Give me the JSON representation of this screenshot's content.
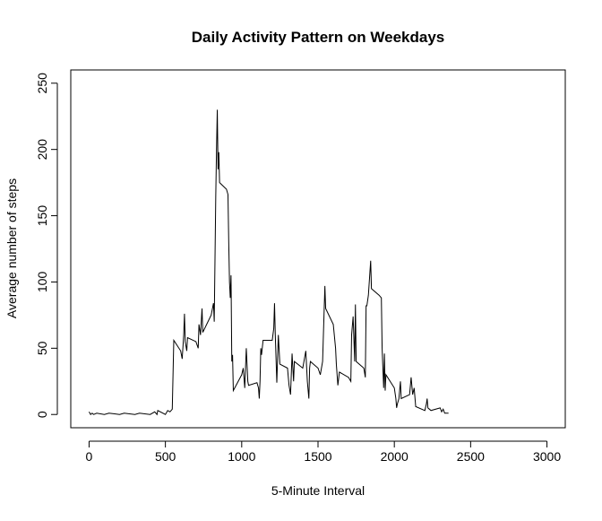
{
  "chart_data": {
    "type": "line",
    "title": "Daily Activity Pattern on Weekdays",
    "x_label": "5-Minute Interval",
    "y_label": "Average number of steps",
    "x": [
      0,
      10,
      20,
      30,
      50,
      100,
      130,
      200,
      230,
      300,
      330,
      400,
      430,
      445,
      450,
      500,
      515,
      530,
      545,
      550,
      555,
      600,
      610,
      620,
      625,
      630,
      640,
      645,
      700,
      715,
      720,
      730,
      740,
      745,
      800,
      815,
      820,
      830,
      835,
      840,
      845,
      850,
      855,
      900,
      910,
      915,
      920,
      925,
      930,
      935,
      940,
      945,
      1000,
      1010,
      1020,
      1030,
      1040,
      1045,
      1100,
      1110,
      1115,
      1120,
      1125,
      1130,
      1140,
      1200,
      1210,
      1215,
      1220,
      1230,
      1240,
      1250,
      1300,
      1310,
      1320,
      1330,
      1340,
      1345,
      1400,
      1420,
      1430,
      1440,
      1445,
      1450,
      1500,
      1515,
      1530,
      1545,
      1550,
      1600,
      1615,
      1620,
      1630,
      1640,
      1700,
      1715,
      1720,
      1730,
      1740,
      1745,
      1750,
      1800,
      1810,
      1815,
      1820,
      1830,
      1845,
      1850,
      1900,
      1915,
      1920,
      1930,
      1935,
      1940,
      1945,
      2000,
      2010,
      2015,
      2020,
      2030,
      2040,
      2045,
      2100,
      2110,
      2120,
      2130,
      2140,
      2200,
      2210,
      2215,
      2220,
      2230,
      2240,
      2300,
      2310,
      2320,
      2330,
      2355
    ],
    "series": [
      {
        "color": "#000000",
        "values": [
          2,
          0,
          1,
          0,
          1,
          0,
          1,
          0,
          1,
          0,
          1,
          0,
          2,
          0,
          3,
          0,
          3,
          2,
          4,
          30,
          56,
          48,
          42,
          60,
          76,
          55,
          48,
          58,
          55,
          50,
          68,
          60,
          80,
          62,
          75,
          84,
          70,
          165,
          200,
          230,
          185,
          198,
          175,
          170,
          166,
          130,
          100,
          88,
          105,
          40,
          45,
          18,
          30,
          35,
          20,
          50,
          25,
          22,
          24,
          20,
          12,
          25,
          50,
          45,
          56,
          56,
          65,
          84,
          60,
          24,
          60,
          38,
          35,
          22,
          15,
          46,
          25,
          40,
          35,
          48,
          25,
          12,
          35,
          40,
          35,
          30,
          40,
          97,
          80,
          68,
          50,
          38,
          22,
          32,
          28,
          25,
          60,
          74,
          40,
          83,
          40,
          35,
          28,
          82,
          82,
          90,
          116,
          95,
          90,
          88,
          50,
          20,
          46,
          18,
          30,
          20,
          12,
          5,
          8,
          12,
          25,
          12,
          15,
          28,
          15,
          20,
          6,
          3,
          8,
          12,
          5,
          4,
          3,
          5,
          2,
          4,
          1,
          1
        ]
      }
    ],
    "xlim": [
      -120,
      3120
    ],
    "xticks": [
      0,
      500,
      1000,
      1500,
      2000,
      2500,
      3000
    ],
    "ylim": [
      -10,
      260
    ],
    "yticks": [
      0,
      50,
      100,
      150,
      200,
      250
    ]
  }
}
